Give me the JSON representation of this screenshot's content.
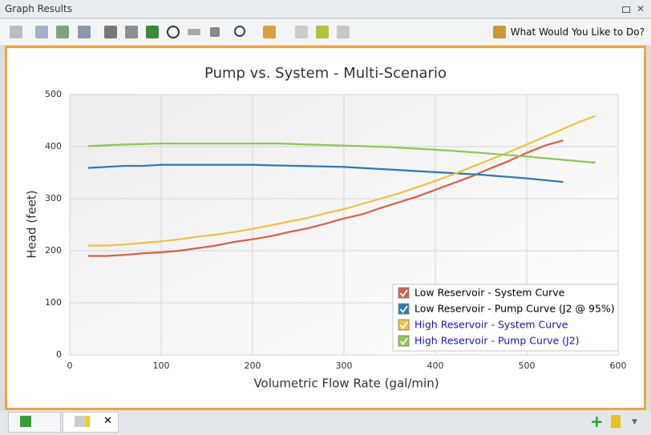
{
  "window": {
    "title": "Graph Results",
    "help_button": "What Would You Like to Do?"
  },
  "chart_data": {
    "type": "line",
    "title": "Pump vs. System - Multi-Scenario",
    "x_label": "Volumetric Flow Rate (gal/min)",
    "y_label": "Head (feet)",
    "xlim": [
      0,
      600
    ],
    "ylim": [
      0,
      500
    ],
    "xticks": [
      0,
      100,
      200,
      300,
      400,
      500,
      600
    ],
    "yticks": [
      0,
      100,
      200,
      300,
      400,
      500
    ],
    "grid": true,
    "legend": "lower right",
    "series": [
      {
        "name": "Low Reservoir - System Curve",
        "color": "#d5604a",
        "label_color": "#000000",
        "x": [
          20,
          40,
          60,
          80,
          100,
          120,
          140,
          160,
          180,
          200,
          220,
          240,
          260,
          280,
          300,
          320,
          340,
          360,
          380,
          400,
          420,
          440,
          460,
          480,
          500,
          520,
          540
        ],
        "values": [
          190,
          190,
          192,
          195,
          197,
          200,
          205,
          210,
          217,
          222,
          228,
          236,
          243,
          252,
          262,
          270,
          282,
          293,
          304,
          317,
          330,
          343,
          358,
          372,
          388,
          402,
          412
        ]
      },
      {
        "name": "Low Reservoir - Pump Curve (J2 @ 95%)",
        "color": "#2e78b4",
        "label_color": "#000000",
        "x": [
          20,
          40,
          60,
          80,
          100,
          150,
          200,
          220,
          250,
          300,
          350,
          400,
          450,
          500,
          540
        ],
        "values": [
          359,
          361,
          363,
          363,
          365,
          365,
          365,
          364,
          363,
          361,
          356,
          351,
          346,
          339,
          332
        ]
      },
      {
        "name": "High Reservoir - System Curve",
        "color": "#f0c040",
        "label_color": "#1a1aa0",
        "x": [
          20,
          40,
          60,
          80,
          100,
          120,
          140,
          160,
          180,
          200,
          220,
          240,
          260,
          280,
          300,
          320,
          340,
          360,
          380,
          400,
          420,
          440,
          460,
          480,
          500,
          520,
          540,
          560,
          575
        ],
        "values": [
          210,
          210,
          212,
          215,
          218,
          222,
          227,
          231,
          236,
          242,
          249,
          256,
          263,
          272,
          280,
          290,
          300,
          310,
          322,
          334,
          347,
          361,
          375,
          389,
          404,
          419,
          434,
          449,
          459
        ]
      },
      {
        "name": "High Reservoir - Pump Curve (J2)",
        "color": "#8dc850",
        "label_color": "#1a1aa0",
        "x": [
          20,
          60,
          100,
          150,
          200,
          230,
          260,
          300,
          350,
          400,
          450,
          500,
          575
        ],
        "values": [
          401,
          404,
          406,
          406,
          406,
          406,
          404,
          402,
          399,
          394,
          388,
          381,
          369
        ]
      }
    ]
  }
}
